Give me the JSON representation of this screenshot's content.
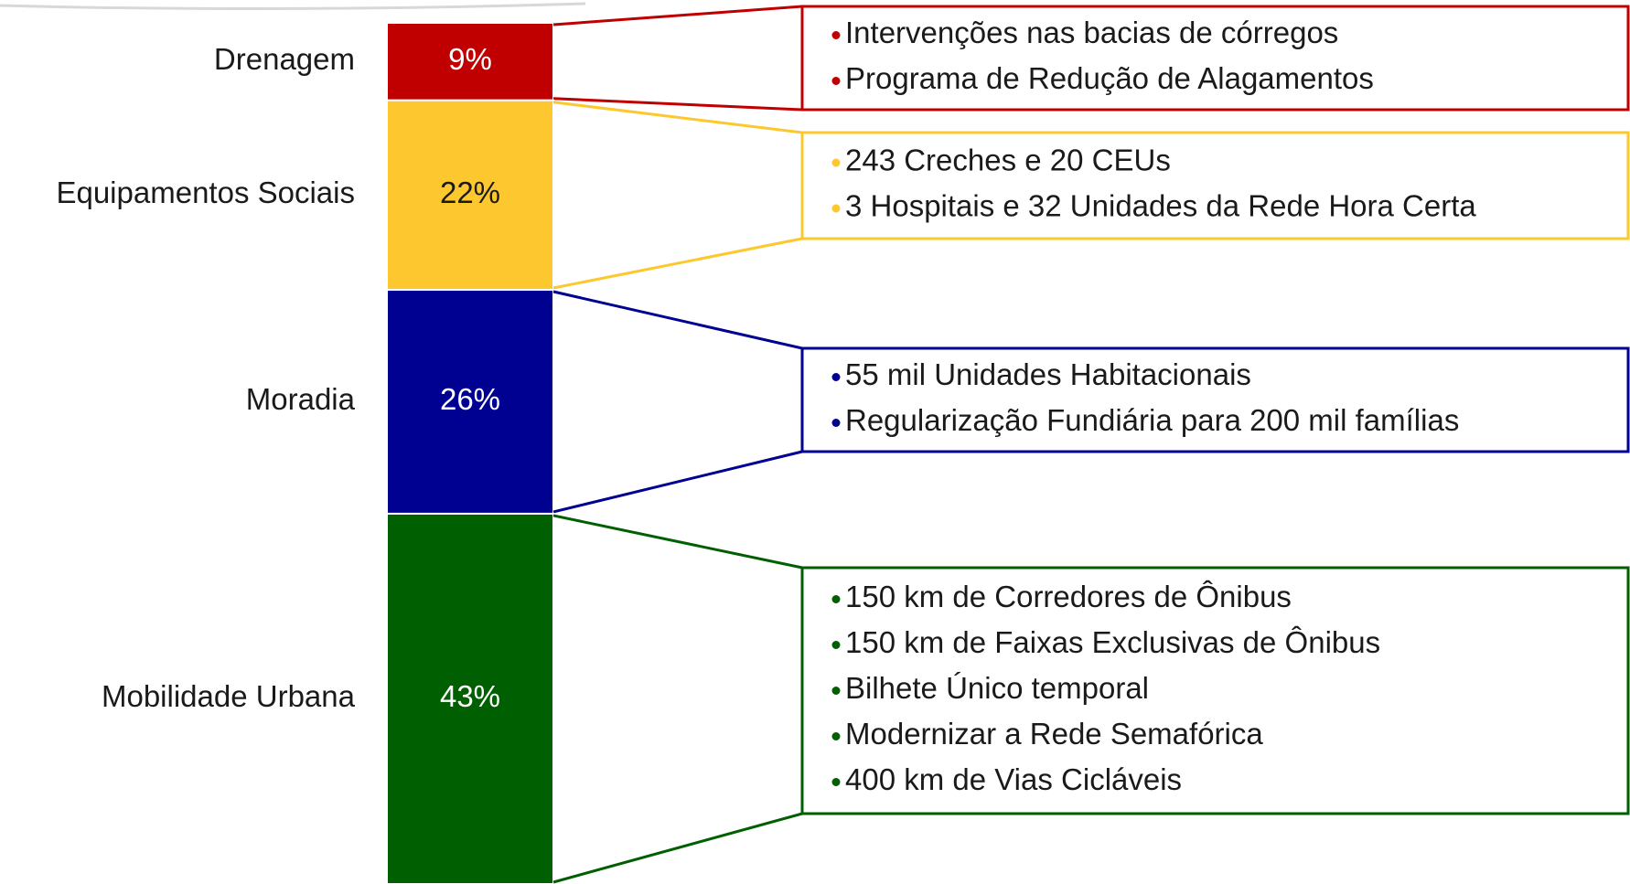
{
  "chart_data": {
    "type": "stacked-bar",
    "categories": [
      "Drenagem",
      "Equipamentos Sociais",
      "Moradia",
      "Mobilidade Urbana"
    ],
    "values": [
      9,
      22,
      26,
      43
    ],
    "value_labels": [
      "9%",
      "22%",
      "26%",
      "43%"
    ],
    "colors": [
      "#c00000",
      "#fdc82f",
      "#000091",
      "#005f00"
    ],
    "items": [
      [
        "Intervenções nas bacias de córregos",
        "Programa de Redução de Alagamentos"
      ],
      [
        "243 Creches e 20 CEUs",
        "3 Hospitais e 32 Unidades da Rede Hora Certa"
      ],
      [
        "55 mil Unidades Habitacionais",
        "Regularização Fundiária para 200 mil famílias"
      ],
      [
        "150 km de Corredores de Ônibus",
        "150 km de Faixas Exclusivas de Ônibus",
        "Bilhete Único temporal",
        "Modernizar a Rede Semafórica",
        "400 km de Vias Cicláveis"
      ]
    ]
  }
}
